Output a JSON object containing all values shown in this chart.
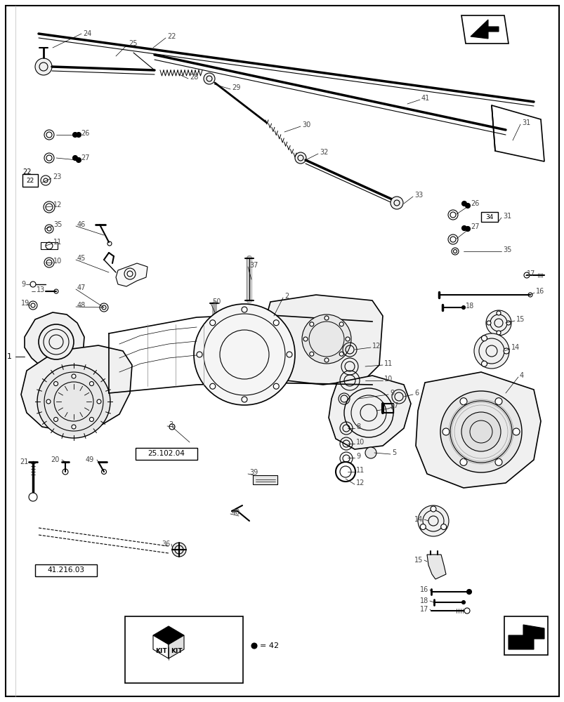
{
  "background_color": "#ffffff",
  "line_color": "#000000",
  "label_color": "#444444",
  "fig_width": 8.04,
  "fig_height": 10.0,
  "dpi": 100,
  "label_fontsize": 7.0
}
